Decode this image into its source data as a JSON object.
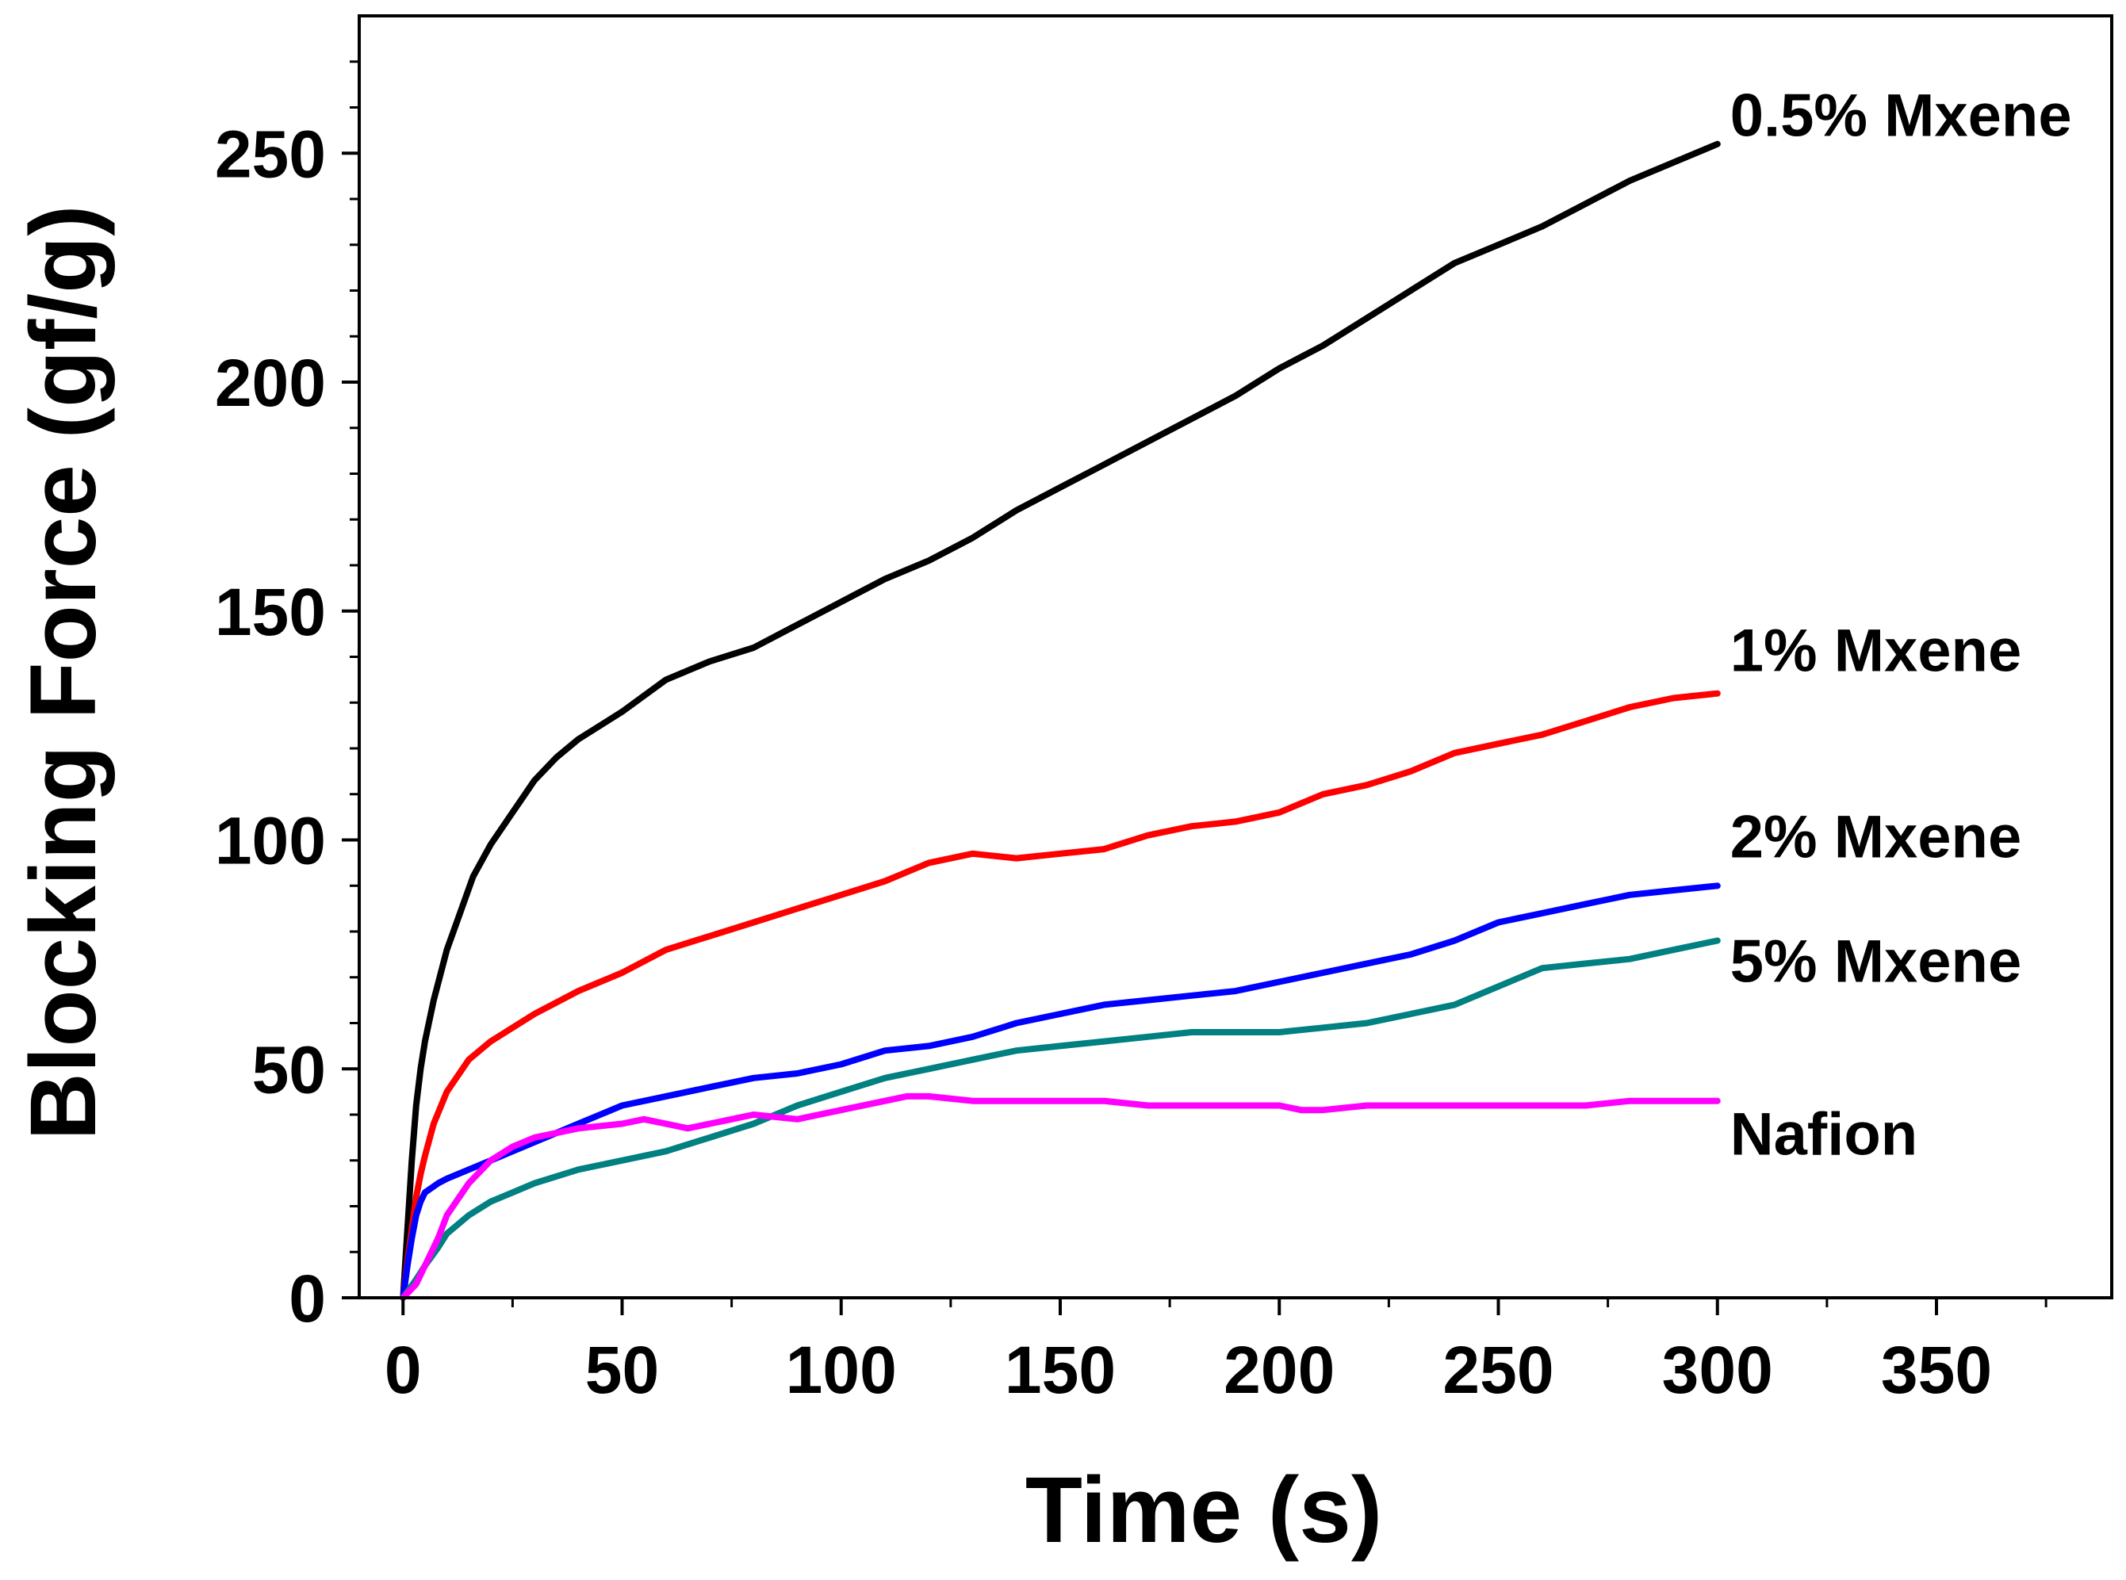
{
  "chart_data": {
    "type": "line",
    "title": "",
    "xlabel": "Time (s)",
    "ylabel": "Blocking Force (gf/g)",
    "xlim": [
      -10,
      390
    ],
    "ylim": [
      0,
      280
    ],
    "x_ticks": [
      0,
      50,
      100,
      150,
      200,
      250,
      300,
      350
    ],
    "y_ticks": [
      0,
      50,
      100,
      150,
      200,
      250
    ],
    "x_tick_labels": [
      "0",
      "50",
      "100",
      "150",
      "200",
      "250",
      "300",
      "350"
    ],
    "y_tick_labels": [
      "0",
      "50",
      "100",
      "150",
      "200",
      "250"
    ],
    "grid": false,
    "legend": "inline labels at line ends (right)",
    "series": [
      {
        "name": "0.5% Mxene",
        "color": "#000000",
        "points": [
          [
            0,
            0
          ],
          [
            1,
            15
          ],
          [
            2,
            30
          ],
          [
            3,
            42
          ],
          [
            4,
            50
          ],
          [
            5,
            56
          ],
          [
            7,
            65
          ],
          [
            10,
            76
          ],
          [
            13,
            84
          ],
          [
            16,
            92
          ],
          [
            20,
            99
          ],
          [
            25,
            106
          ],
          [
            30,
            113
          ],
          [
            35,
            118
          ],
          [
            40,
            122
          ],
          [
            50,
            128
          ],
          [
            60,
            135
          ],
          [
            70,
            139
          ],
          [
            80,
            142
          ],
          [
            90,
            147
          ],
          [
            100,
            152
          ],
          [
            110,
            157
          ],
          [
            120,
            161
          ],
          [
            130,
            166
          ],
          [
            140,
            172
          ],
          [
            150,
            177
          ],
          [
            160,
            182
          ],
          [
            170,
            187
          ],
          [
            180,
            192
          ],
          [
            190,
            197
          ],
          [
            200,
            203
          ],
          [
            210,
            208
          ],
          [
            220,
            214
          ],
          [
            230,
            220
          ],
          [
            240,
            226
          ],
          [
            250,
            230
          ],
          [
            260,
            234
          ],
          [
            270,
            239
          ],
          [
            280,
            244
          ],
          [
            290,
            248
          ],
          [
            300,
            252
          ]
        ]
      },
      {
        "name": "1% Mxene",
        "color": "#ff0000",
        "points": [
          [
            0,
            0
          ],
          [
            1,
            8
          ],
          [
            2,
            15
          ],
          [
            3,
            22
          ],
          [
            4,
            27
          ],
          [
            5,
            31
          ],
          [
            7,
            38
          ],
          [
            10,
            45
          ],
          [
            15,
            52
          ],
          [
            20,
            56
          ],
          [
            30,
            62
          ],
          [
            40,
            67
          ],
          [
            50,
            71
          ],
          [
            60,
            76
          ],
          [
            70,
            79
          ],
          [
            80,
            82
          ],
          [
            90,
            85
          ],
          [
            100,
            88
          ],
          [
            110,
            91
          ],
          [
            120,
            95
          ],
          [
            130,
            97
          ],
          [
            140,
            96
          ],
          [
            150,
            97
          ],
          [
            160,
            98
          ],
          [
            170,
            101
          ],
          [
            180,
            103
          ],
          [
            190,
            104
          ],
          [
            200,
            106
          ],
          [
            210,
            110
          ],
          [
            220,
            112
          ],
          [
            230,
            115
          ],
          [
            240,
            119
          ],
          [
            250,
            121
          ],
          [
            260,
            123
          ],
          [
            270,
            126
          ],
          [
            280,
            129
          ],
          [
            290,
            131
          ],
          [
            300,
            132
          ]
        ]
      },
      {
        "name": "2% Mxene",
        "color": "#0000ff",
        "points": [
          [
            0,
            0
          ],
          [
            1,
            7
          ],
          [
            2,
            13
          ],
          [
            3,
            18
          ],
          [
            4,
            21
          ],
          [
            5,
            23
          ],
          [
            8,
            25
          ],
          [
            10,
            26
          ],
          [
            20,
            30
          ],
          [
            30,
            34
          ],
          [
            40,
            38
          ],
          [
            50,
            42
          ],
          [
            60,
            44
          ],
          [
            70,
            46
          ],
          [
            80,
            48
          ],
          [
            90,
            49
          ],
          [
            100,
            51
          ],
          [
            110,
            54
          ],
          [
            120,
            55
          ],
          [
            130,
            57
          ],
          [
            140,
            60
          ],
          [
            150,
            62
          ],
          [
            160,
            64
          ],
          [
            170,
            65
          ],
          [
            180,
            66
          ],
          [
            190,
            67
          ],
          [
            200,
            69
          ],
          [
            210,
            71
          ],
          [
            220,
            73
          ],
          [
            230,
            75
          ],
          [
            240,
            78
          ],
          [
            250,
            82
          ],
          [
            260,
            84
          ],
          [
            270,
            86
          ],
          [
            280,
            88
          ],
          [
            290,
            89
          ],
          [
            300,
            90
          ]
        ]
      },
      {
        "name": "5% Mxene",
        "color": "#008080",
        "points": [
          [
            0,
            0
          ],
          [
            3,
            4
          ],
          [
            5,
            7
          ],
          [
            8,
            11
          ],
          [
            10,
            14
          ],
          [
            15,
            18
          ],
          [
            20,
            21
          ],
          [
            25,
            23
          ],
          [
            30,
            25
          ],
          [
            40,
            28
          ],
          [
            50,
            30
          ],
          [
            60,
            32
          ],
          [
            70,
            35
          ],
          [
            80,
            38
          ],
          [
            90,
            42
          ],
          [
            100,
            45
          ],
          [
            110,
            48
          ],
          [
            120,
            50
          ],
          [
            130,
            52
          ],
          [
            140,
            54
          ],
          [
            150,
            55
          ],
          [
            160,
            56
          ],
          [
            170,
            57
          ],
          [
            180,
            58
          ],
          [
            190,
            58
          ],
          [
            200,
            58
          ],
          [
            210,
            59
          ],
          [
            220,
            60
          ],
          [
            230,
            62
          ],
          [
            240,
            64
          ],
          [
            250,
            68
          ],
          [
            260,
            72
          ],
          [
            270,
            73
          ],
          [
            280,
            74
          ],
          [
            290,
            76
          ],
          [
            300,
            78
          ]
        ]
      },
      {
        "name": "Nafion",
        "color": "#ff00ff",
        "points": [
          [
            0,
            0
          ],
          [
            3,
            3
          ],
          [
            5,
            7
          ],
          [
            8,
            13
          ],
          [
            10,
            18
          ],
          [
            15,
            25
          ],
          [
            20,
            30
          ],
          [
            25,
            33
          ],
          [
            30,
            35
          ],
          [
            40,
            37
          ],
          [
            50,
            38
          ],
          [
            55,
            39
          ],
          [
            60,
            38
          ],
          [
            65,
            37
          ],
          [
            70,
            38
          ],
          [
            75,
            39
          ],
          [
            80,
            40
          ],
          [
            90,
            39
          ],
          [
            100,
            41
          ],
          [
            110,
            43
          ],
          [
            115,
            44
          ],
          [
            120,
            44
          ],
          [
            130,
            43
          ],
          [
            140,
            43
          ],
          [
            150,
            43
          ],
          [
            160,
            43
          ],
          [
            170,
            42
          ],
          [
            180,
            42
          ],
          [
            190,
            42
          ],
          [
            200,
            42
          ],
          [
            205,
            41
          ],
          [
            210,
            41
          ],
          [
            220,
            42
          ],
          [
            230,
            42
          ],
          [
            240,
            42
          ],
          [
            250,
            42
          ],
          [
            260,
            42
          ],
          [
            270,
            42
          ],
          [
            280,
            43
          ],
          [
            290,
            43
          ],
          [
            300,
            43
          ]
        ]
      }
    ]
  }
}
